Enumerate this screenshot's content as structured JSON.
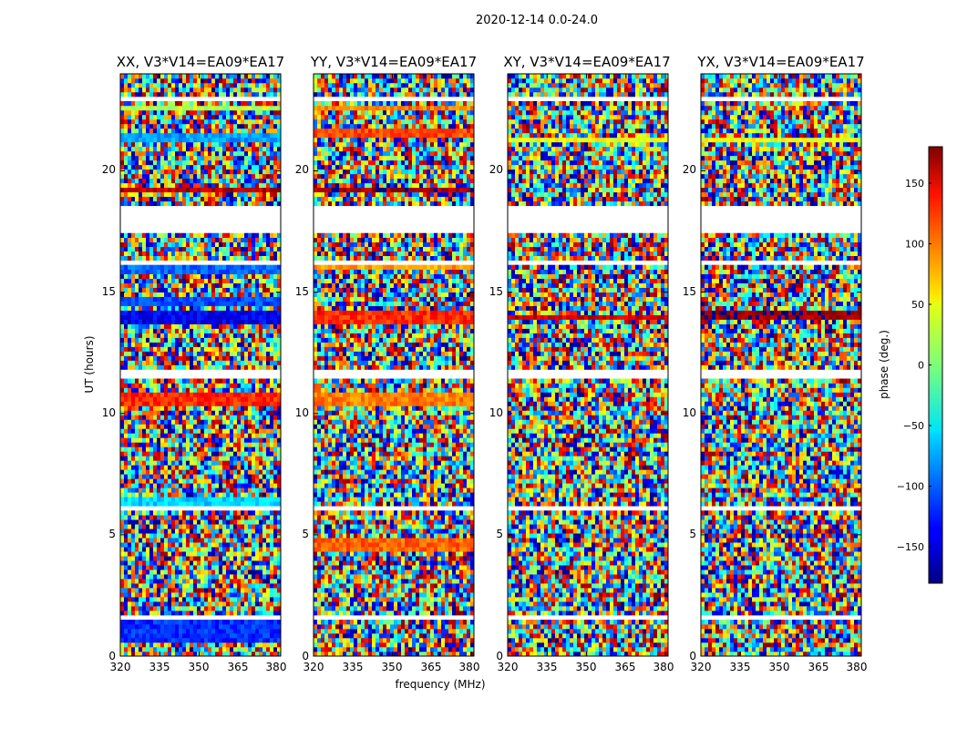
{
  "suptitle": "2020-12-14 0.0-24.0",
  "chart_data": [
    {
      "type": "heatmap",
      "title": "XX, V3*V14=EA09*EA17",
      "x": {
        "label": "frequency (MHz)",
        "range": [
          320,
          381
        ],
        "ticks": [
          "320",
          "335",
          "350",
          "365",
          "380"
        ]
      },
      "y": {
        "label": "UT (hours)",
        "range": [
          0,
          24
        ],
        "ticks": [
          "0",
          "5",
          "10",
          "15",
          "20"
        ]
      },
      "value": "phase (deg.)",
      "coherent_rows": [
        [
          1.0,
          0.9,
          -120
        ],
        [
          6.3,
          0.4,
          -60
        ],
        [
          10.6,
          0.5,
          120
        ],
        [
          13.9,
          0.6,
          -140
        ],
        [
          14.6,
          0.3,
          -110
        ],
        [
          15.9,
          0.3,
          -100
        ],
        [
          19.2,
          0.3,
          160
        ],
        [
          21.4,
          0.3,
          -80
        ],
        [
          22.6,
          0.3,
          20
        ]
      ],
      "gaps_hours": [
        [
          17.4,
          18.5
        ],
        [
          11.4,
          11.9
        ],
        [
          6.05,
          6.25
        ],
        [
          22.8,
          23.0
        ],
        [
          16.2,
          16.4
        ],
        [
          1.5,
          1.6
        ],
        [
          13.3,
          13.4
        ]
      ]
    },
    {
      "type": "heatmap",
      "title": "YY, V3*V14=EA09*EA17",
      "x": {
        "label": "frequency (MHz)",
        "range": [
          320,
          381
        ],
        "ticks": [
          "320",
          "335",
          "350",
          "365",
          "380"
        ]
      },
      "y": {
        "label": "",
        "range": [
          0,
          24
        ],
        "ticks": [
          "0",
          "5",
          "10",
          "15",
          "20"
        ]
      },
      "value": "phase (deg.)",
      "coherent_rows": [
        [
          4.6,
          0.4,
          100
        ],
        [
          10.6,
          0.5,
          90
        ],
        [
          13.9,
          0.6,
          120
        ],
        [
          16.1,
          0.3,
          80
        ],
        [
          19.2,
          0.3,
          170
        ],
        [
          21.6,
          0.3,
          110
        ],
        [
          22.6,
          0.3,
          90
        ]
      ],
      "gaps_hours": [
        [
          17.4,
          18.5
        ],
        [
          11.4,
          11.9
        ],
        [
          6.05,
          6.25
        ],
        [
          22.8,
          23.0
        ],
        [
          16.2,
          16.4
        ],
        [
          1.5,
          1.6
        ],
        [
          13.3,
          13.4
        ]
      ]
    },
    {
      "type": "heatmap",
      "title": "XY, V3*V14=EA09*EA17",
      "x": {
        "label": "",
        "range": [
          320,
          381
        ],
        "ticks": [
          "320",
          "335",
          "350",
          "365",
          "380"
        ]
      },
      "y": {
        "label": "",
        "range": [
          0,
          24
        ],
        "ticks": [
          "0",
          "5",
          "10",
          "15",
          "20"
        ]
      },
      "value": "phase (deg.)",
      "coherent_rows": [
        [
          21.3,
          0.3,
          40
        ],
        [
          14.0,
          0.3,
          150
        ]
      ],
      "gaps_hours": [
        [
          17.4,
          18.5
        ],
        [
          11.4,
          11.9
        ],
        [
          6.05,
          6.25
        ],
        [
          22.8,
          23.0
        ],
        [
          16.2,
          16.4
        ],
        [
          1.5,
          1.6
        ],
        [
          13.3,
          13.4
        ]
      ]
    },
    {
      "type": "heatmap",
      "title": "YX, V3*V14=EA09*EA17",
      "x": {
        "label": "",
        "range": [
          320,
          381
        ],
        "ticks": [
          "320",
          "335",
          "350",
          "365",
          "380"
        ]
      },
      "y": {
        "label": "",
        "range": [
          0,
          24
        ],
        "ticks": [
          "0",
          "5",
          "10",
          "15",
          "20"
        ]
      },
      "value": "phase (deg.)",
      "coherent_rows": [
        [
          14.1,
          0.3,
          170
        ],
        [
          21.3,
          0.3,
          40
        ]
      ],
      "gaps_hours": [
        [
          17.4,
          18.5
        ],
        [
          11.4,
          11.9
        ],
        [
          6.05,
          6.25
        ],
        [
          22.8,
          23.0
        ],
        [
          16.2,
          16.4
        ],
        [
          1.5,
          1.6
        ],
        [
          13.3,
          13.4
        ]
      ]
    }
  ],
  "colorbar": {
    "label": "phase (deg.)",
    "range": [
      -180,
      180
    ],
    "ticks": [
      "150",
      "100",
      "50",
      "0",
      "−50",
      "−100",
      "−150"
    ],
    "tick_values": [
      150,
      100,
      50,
      0,
      -50,
      -100,
      -150
    ],
    "colormap": "jet"
  }
}
